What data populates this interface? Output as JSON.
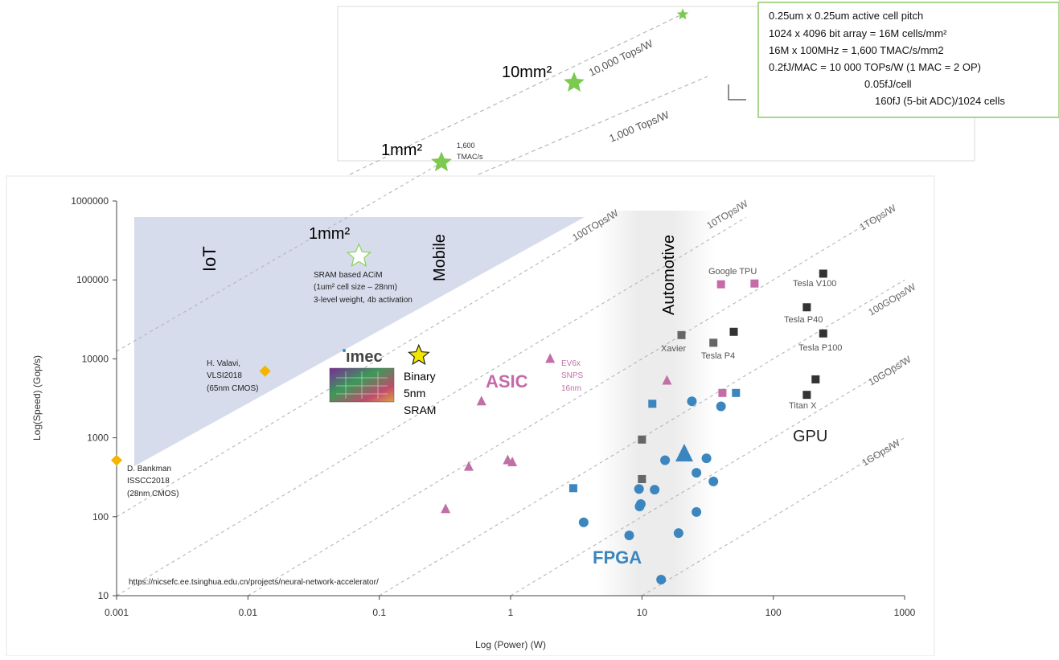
{
  "chart_data": [
    {
      "type": "scatter",
      "panel": "main",
      "title": "",
      "xlabel": "Log (Power) (W)",
      "ylabel": "Log(Speed)  (Gop/s)",
      "x_scale": "log",
      "y_scale": "log",
      "xlim": [
        0.001,
        1000
      ],
      "ylim": [
        10,
        1000000
      ],
      "x_ticks": [
        "0.001",
        "0.01",
        "0.1",
        "1",
        "10",
        "100",
        "1000"
      ],
      "y_ticks": [
        "10",
        "100",
        "1000",
        "10000",
        "100000",
        "1000000"
      ],
      "grid": false,
      "source_note": "https://nicsefc.ee.tsinghua.edu.cn/projects/neural-network-accelerator/",
      "regions": [
        {
          "label": "IoT",
          "power_range": [
            0.0015,
            0.05
          ],
          "color": "#d7dcec"
        },
        {
          "label": "Mobile",
          "power_range": [
            0.05,
            5
          ],
          "color": "#d7dcec"
        },
        {
          "label": "Automotive",
          "power_range": [
            5,
            50
          ],
          "color": "#eeeeee"
        }
      ],
      "category_labels": [
        {
          "label": "ASIC",
          "x": 1.0,
          "y": 5000,
          "color": "#c66aa8"
        },
        {
          "label": "FPGA",
          "x": 10.5,
          "y": 24,
          "color": "#3b86bf"
        },
        {
          "label": "GPU",
          "x": 320,
          "y": 1150,
          "color": "#333333"
        }
      ],
      "efficiency_lines": [
        {
          "label": "100TOps/W",
          "tops_per_w": 100
        },
        {
          "label": "10TOps/W",
          "tops_per_w": 10
        },
        {
          "label": "1TOps/W",
          "tops_per_w": 1
        },
        {
          "label": "100GOps/W",
          "tops_per_w": 0.1
        },
        {
          "label": "10GOps/W",
          "tops_per_w": 0.01
        },
        {
          "label": "1GOps/W",
          "tops_per_w": 0.001
        }
      ],
      "annotated_points": [
        {
          "label": "H. Valavi, VLSI2018 (65nm CMOS)",
          "x": 0.0135,
          "y": 7000,
          "marker": "diamond",
          "color": "#f5b400"
        },
        {
          "label": "D. Bankman ISSCC2018 (28nm CMOS)",
          "x": 0.001,
          "y": 520,
          "marker": "diamond",
          "color": "#f5b400"
        },
        {
          "label": "1mm² SRAM based ACiM (1um² cell size – 28nm) 3-level weight, 4b activation",
          "x": 0.07,
          "y": 200000,
          "marker": "open-star",
          "color": "#8cd05a"
        },
        {
          "label": "Binary 5nm SRAM",
          "x": 0.2,
          "y": 11000,
          "marker": "star",
          "color": "#f2e600"
        },
        {
          "label": "EV6x SNPS 16nm",
          "x": 2.0,
          "y": 10000,
          "marker": "triangle",
          "color": "#c070a5"
        },
        {
          "label": "Google TPU",
          "x": 40,
          "y": 88000,
          "marker": "square",
          "color": "#c66aa8"
        },
        {
          "label": "Tesla V100",
          "x": 240,
          "y": 120000,
          "marker": "square",
          "color": "#333333"
        },
        {
          "label": "Tesla P40",
          "x": 180,
          "y": 45000,
          "marker": "square",
          "color": "#333333"
        },
        {
          "label": "Tesla P100",
          "x": 240,
          "y": 21000,
          "marker": "square",
          "color": "#333333"
        },
        {
          "label": "Xavier",
          "x": 20,
          "y": 20000,
          "marker": "square",
          "color": "#666666"
        },
        {
          "label": "Tesla P4",
          "x": 35,
          "y": 16000,
          "marker": "square",
          "color": "#666666"
        },
        {
          "label": "Titan X",
          "x": 180,
          "y": 3500,
          "marker": "square",
          "color": "#333333"
        }
      ],
      "series": [
        {
          "name": "ASIC",
          "marker": "triangle",
          "color": "#c070a5",
          "x": [
            0.6,
            0.48,
            0.95,
            1.03,
            0.32,
            15.5,
            2.0
          ],
          "y": [
            2900,
            430,
            520,
            490,
            125,
            5300,
            10000
          ]
        },
        {
          "name": "ASIC (square)",
          "marker": "square",
          "color": "#c66aa8",
          "x": [
            40,
            72,
            41
          ],
          "y": [
            88000,
            90000,
            3700
          ]
        },
        {
          "name": "FPGA",
          "marker": "circle",
          "color": "#3b86bf",
          "x": [
            3.6,
            9.5,
            9.8,
            9.6,
            12.5,
            8.0,
            14,
            15,
            19,
            24,
            26,
            26,
            31,
            35,
            40
          ],
          "y": [
            85,
            225,
            145,
            135,
            220,
            58,
            16,
            520,
            62,
            2900,
            360,
            115,
            550,
            280,
            2500
          ]
        },
        {
          "name": "FPGA (square)",
          "marker": "square",
          "color": "#3b86bf",
          "x": [
            3.0,
            12,
            52
          ],
          "y": [
            230,
            2700,
            3700
          ]
        },
        {
          "name": "FPGA (large)",
          "marker": "big-triangle",
          "color": "#3b86bf",
          "x": [
            21
          ],
          "y": [
            620
          ]
        },
        {
          "name": "GPU",
          "marker": "square",
          "color": "#333333",
          "x": [
            240,
            180,
            240,
            50,
            210,
            180
          ],
          "y": [
            120000,
            45000,
            21000,
            22000,
            5500,
            3500
          ]
        },
        {
          "name": "GPU (gray)",
          "marker": "square",
          "color": "#666666",
          "x": [
            20,
            35,
            10,
            10
          ],
          "y": [
            20000,
            16000,
            950,
            300
          ]
        }
      ]
    },
    {
      "type": "scatter",
      "panel": "inset",
      "efficiency_lines": [
        {
          "label": "10,000 Tops/W"
        },
        {
          "label": "1,000 Tops/W"
        }
      ],
      "points": [
        {
          "label": "1mm²",
          "note": "1,600 TMAC/s",
          "marker": "star",
          "color": "#7cc950"
        },
        {
          "label": "10mm²",
          "marker": "star",
          "color": "#7cc950"
        },
        {
          "label": "",
          "marker": "star",
          "color": "#7cc950"
        }
      ]
    }
  ],
  "labels": {
    "iot": "IoT",
    "mobile": "Mobile",
    "automotive": "Automotive",
    "asic": "ASIC",
    "fpga": "FPGA",
    "gpu": "GPU",
    "imec": "ımec",
    "binary": [
      "Binary",
      "5nm",
      "SRAM"
    ],
    "valavi": [
      "H. Valavi,",
      "VLSI2018",
      "(65nm CMOS)"
    ],
    "bankman": [
      "D. Bankman",
      "ISSCC2018",
      "(28nm CMOS)"
    ],
    "acim_title": "1mm²",
    "acim": [
      "SRAM based ACiM",
      "(1um² cell size – 28nm)",
      "3-level weight, 4b activation"
    ],
    "ev6x": [
      "EV6x",
      "SNPS",
      "16nm"
    ],
    "google_tpu": "Google TPU",
    "tesla_v100": "Tesla V100",
    "tesla_p40": "Tesla P40",
    "tesla_p100": "Tesla P100",
    "xavier": "Xavier",
    "tesla_p4": "Tesla P4",
    "titan_x": "Titan X",
    "url": "https://nicsefc.ee.tsinghua.edu.cn/projects/neural-network-accelerator/",
    "line_100tops": "100TOps/W",
    "line_10tops": "10TOps/W",
    "line_1tops": "1TOps/W",
    "line_100gops": "100GOps/W",
    "line_10gops": "10GOps/W",
    "line_1gops": "1GOps/W",
    "inset_line_10000": "10,000 Tops/W",
    "inset_line_1000": "1,000 Tops/W",
    "inset_1mm": "1mm²",
    "inset_10mm": "10mm²",
    "inset_tmac": [
      "1,600",
      "TMAC/s"
    ],
    "info_box": [
      "0.25um x 0.25um active cell pitch",
      "1024 x 4096 bit array = 16M cells/mm²",
      "16M x 100MHz = 1,600 TMAC/s/mm2",
      "0.2fJ/MAC = 10 000 TOPs/W (1 MAC = 2 OP)",
      "0.05fJ/cell",
      "160fJ (5-bit ADC)/1024 cells"
    ]
  }
}
